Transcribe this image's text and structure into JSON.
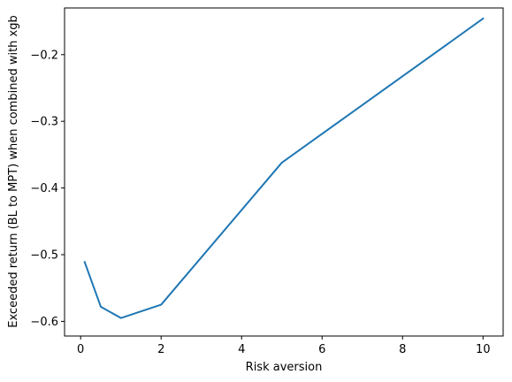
{
  "chart_data": {
    "type": "line",
    "title": "",
    "xlabel": "Risk aversion",
    "ylabel": "Exceeded return (BL to MPT) when combined with xgb",
    "xlim": [
      -0.4,
      10.5
    ],
    "ylim": [
      -0.622,
      -0.13
    ],
    "xticks": [
      0,
      2,
      4,
      6,
      8,
      10
    ],
    "xtick_labels": [
      "0",
      "2",
      "4",
      "6",
      "8",
      "10"
    ],
    "yticks": [
      -0.6,
      -0.5,
      -0.4,
      -0.3,
      -0.2
    ],
    "ytick_labels": [
      "−0.6",
      "−0.5",
      "−0.4",
      "−0.3",
      "−0.2"
    ],
    "grid": false,
    "series": [
      {
        "color": "#1f77b4",
        "x": [
          0.1,
          0.5,
          1,
          2,
          5,
          10
        ],
        "y": [
          -0.511,
          -0.578,
          -0.595,
          -0.575,
          -0.362,
          -0.146
        ]
      }
    ]
  }
}
